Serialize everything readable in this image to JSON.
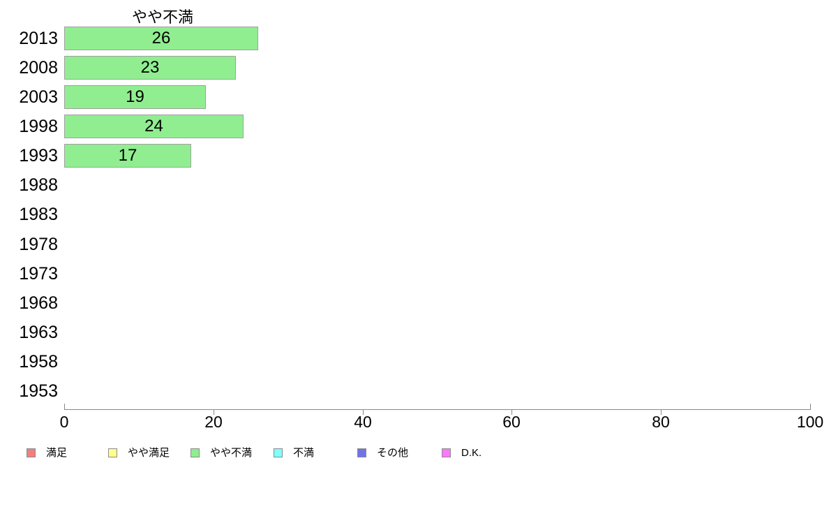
{
  "chart_data": {
    "type": "bar",
    "orientation": "horizontal",
    "title": "やや不満",
    "categories": [
      "2013",
      "2008",
      "2003",
      "1998",
      "1993",
      "1988",
      "1983",
      "1978",
      "1973",
      "1968",
      "1963",
      "1958",
      "1953"
    ],
    "values": [
      26,
      23,
      19,
      24,
      17,
      null,
      null,
      null,
      null,
      null,
      null,
      null,
      null
    ],
    "xlabel": "",
    "ylabel": "",
    "xlim": [
      0,
      100
    ],
    "x_ticks": [
      0,
      20,
      40,
      60,
      80,
      100
    ],
    "grid": false,
    "legend_position": "bottom",
    "colors": {
      "bar_fill": "#90ee90",
      "bar_border": "#a0a0a0",
      "axis": "#888888",
      "text": "#000000"
    },
    "legend": [
      {
        "label": "満足",
        "color": "#f08080"
      },
      {
        "label": "やや満足",
        "color": "#ffff8c"
      },
      {
        "label": "やや不満",
        "color": "#90ee90"
      },
      {
        "label": "不満",
        "color": "#80ffff"
      },
      {
        "label": "その他",
        "color": "#7272e8"
      },
      {
        "label": "D.K.",
        "color": "#fa78fa"
      }
    ]
  }
}
